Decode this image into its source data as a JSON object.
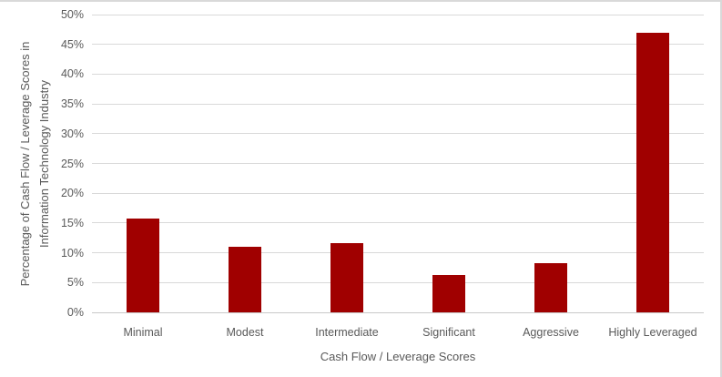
{
  "chart_data": {
    "type": "bar",
    "title": "",
    "categories": [
      "Minimal",
      "Modest",
      "Intermediate",
      "Significant",
      "Aggressive",
      "Highly Leveraged"
    ],
    "values": [
      15.7,
      11,
      11.6,
      6.3,
      8.3,
      47
    ],
    "xlabel": "Cash Flow / Leverage Scores",
    "ylabel_lines": [
      "Percentage of Cash Flow / Leverage Scores in",
      "Information Technology Industry"
    ],
    "ylim": [
      0,
      50
    ],
    "ytick_step": 5,
    "ytick_suffix": "%",
    "grid": true,
    "legend_position": "none",
    "colors": {
      "bar": "#A00000",
      "gridline": "#D9D9D9",
      "axis_line": "#C9C9C9",
      "text": "#595959",
      "chart_border": "#D9D9D9"
    }
  }
}
